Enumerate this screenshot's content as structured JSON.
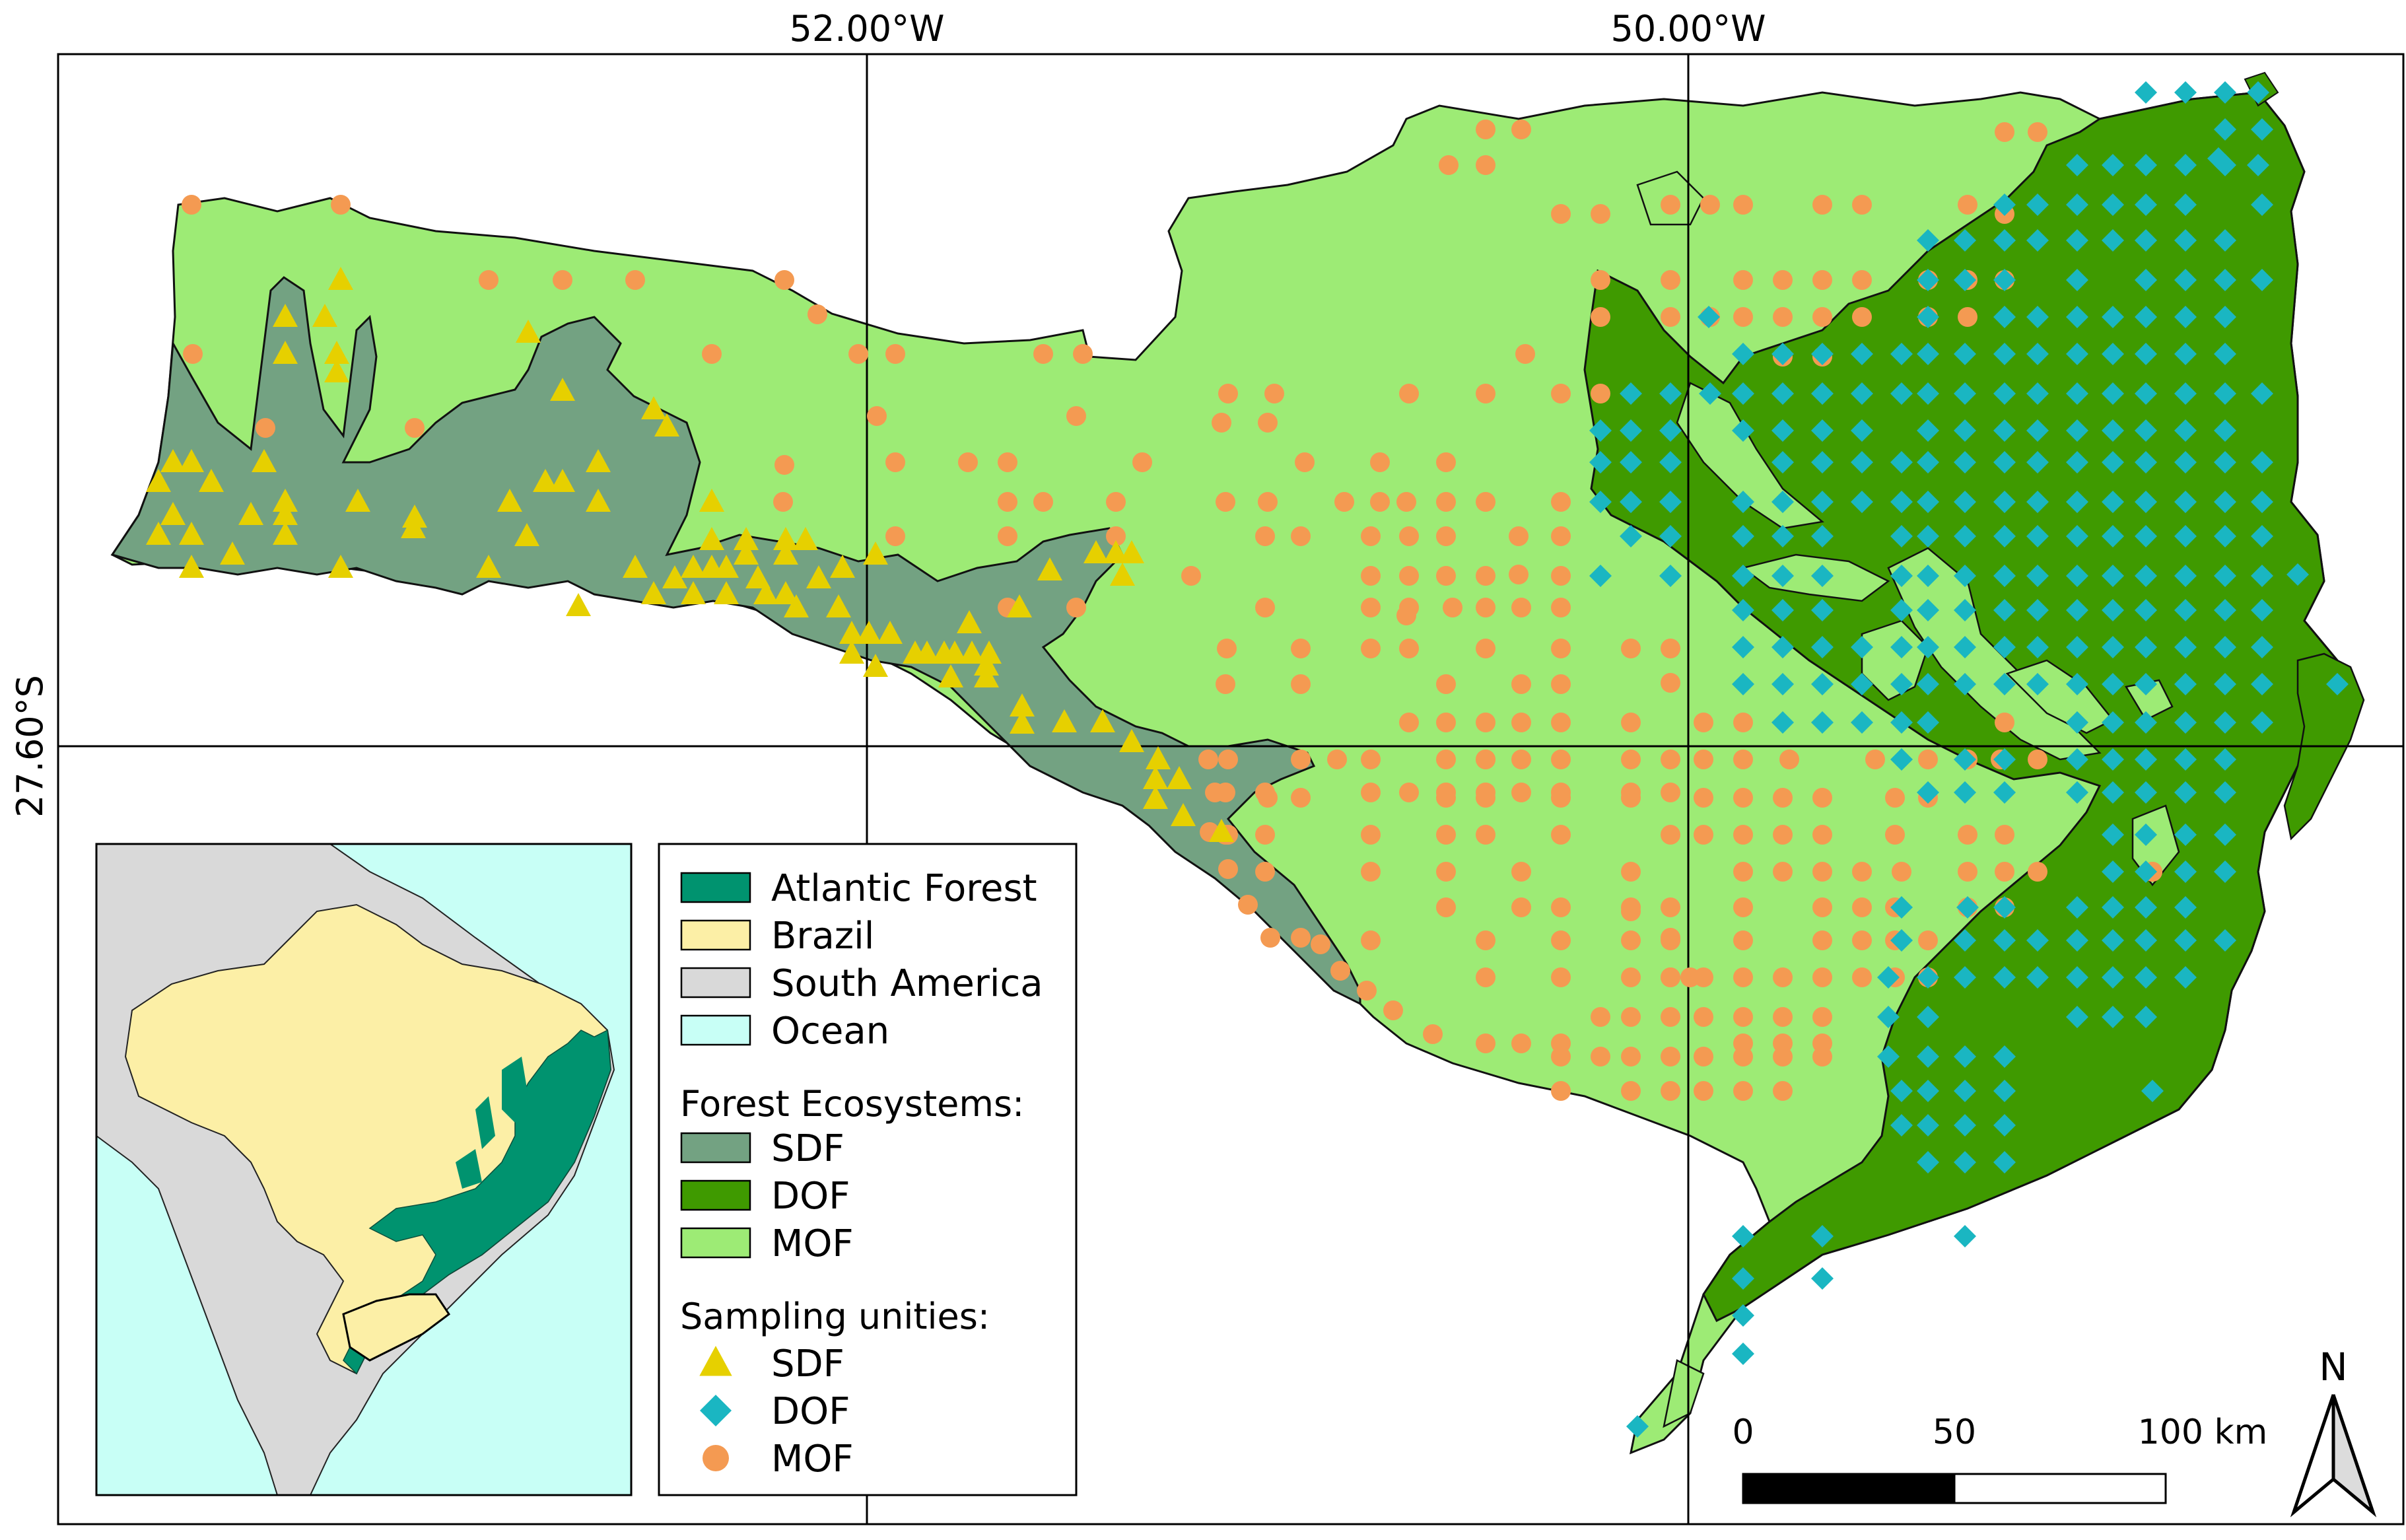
{
  "map": {
    "graticule": {
      "lon_labels": [
        "52.00°W",
        "50.00°W"
      ],
      "lat_labels": [
        "27.60°S"
      ]
    },
    "scalebar": {
      "labels": [
        "0",
        "50",
        "100 km"
      ]
    },
    "north_arrow": {
      "label": "N"
    }
  },
  "legend": {
    "base_items": [
      {
        "label": "Atlantic Forest",
        "color": "#00936f"
      },
      {
        "label": "Brazil",
        "color": "#fcefa6"
      },
      {
        "label": "South America",
        "color": "#d9d9d9"
      },
      {
        "label": "Ocean",
        "color": "#c8fff6"
      }
    ],
    "ecosystems_title": "Forest Ecosystems:",
    "ecosystems": [
      {
        "label": "SDF",
        "color": "#73a282"
      },
      {
        "label": "DOF",
        "color": "#3f9a00"
      },
      {
        "label": "MOF",
        "color": "#9deb75"
      }
    ],
    "sampling_title": "Sampling unities:",
    "sampling": [
      {
        "label": "SDF",
        "symbol": "triangle",
        "color": "#e6d000"
      },
      {
        "label": "DOF",
        "symbol": "diamond",
        "color": "#1ab6c2"
      },
      {
        "label": "MOF",
        "symbol": "circle",
        "color": "#f49a52"
      }
    ]
  },
  "inset": {
    "colors": {
      "ocean": "#c8fff6",
      "south_america": "#d9d9d9",
      "brazil": "#fcefa6",
      "atlantic_forest": "#00936f"
    }
  }
}
